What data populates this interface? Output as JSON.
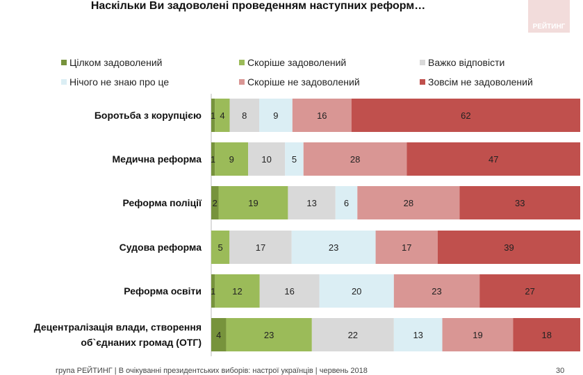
{
  "title": "Наскільки Ви задоволені проведенням наступних реформ…",
  "logo": "РЕЙТИНГ",
  "footer": "група РЕЙТИНГ | В очікуванні президентських виборів: настрої українців | червень 2018",
  "page_number": "30",
  "chart_data": {
    "type": "bar",
    "orientation": "horizontal",
    "stacked": true,
    "legend_position": "top",
    "categories": [
      "Боротьба з корупцією",
      "Медична реформа",
      "Реформа поліції",
      "Судова реформа",
      "Реформа освіти",
      "Децентралізація влади, створення об`єднаних громад (ОТГ)"
    ],
    "series": [
      {
        "name": "Цілком задоволений",
        "color": "#77933c",
        "values": [
          1,
          1,
          2,
          0,
          1,
          4
        ]
      },
      {
        "name": "Скоріше задоволений",
        "color": "#9bbb59",
        "values": [
          4,
          9,
          19,
          5,
          12,
          23
        ]
      },
      {
        "name": "Важко відповісти",
        "color": "#d9d9d9",
        "values": [
          8,
          10,
          13,
          17,
          16,
          22
        ]
      },
      {
        "name": "Нічого не знаю про це",
        "color": "#dbeef4",
        "values": [
          9,
          5,
          6,
          23,
          20,
          13
        ]
      },
      {
        "name": "Скоріше не задоволений",
        "color": "#d99694",
        "values": [
          16,
          28,
          28,
          17,
          23,
          19
        ]
      },
      {
        "name": "Зовсім не задоволений",
        "color": "#c0504d",
        "values": [
          62,
          47,
          33,
          39,
          27,
          18
        ]
      }
    ]
  }
}
